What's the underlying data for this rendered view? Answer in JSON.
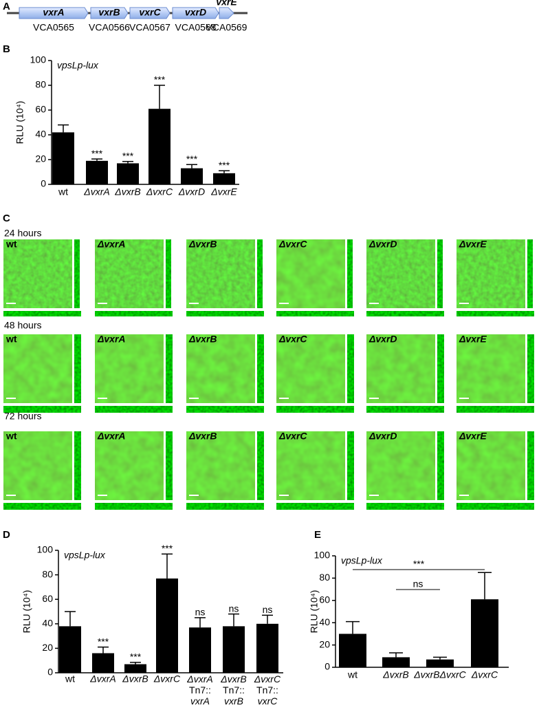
{
  "gene_map": {
    "panel": "A",
    "genes": [
      {
        "name": "vxrA",
        "locus": "VCA0565"
      },
      {
        "name": "vxrB",
        "locus": "VCA0566"
      },
      {
        "name": "vxrC",
        "locus": "VCA0567"
      },
      {
        "name": "vxrD",
        "locus": "VCA0568"
      },
      {
        "name": "vxrE",
        "locus": "VCA0569"
      }
    ]
  },
  "biofilm_images": {
    "panel": "C",
    "rows": [
      {
        "label": "24 hours",
        "strains": [
          "wt",
          "ΔvxrA",
          "ΔvxrB",
          "ΔvxrC",
          "ΔvxrD",
          "ΔvxrE"
        ]
      },
      {
        "label": "48 hours",
        "strains": [
          "wt",
          "ΔvxrA",
          "ΔvxrB",
          "ΔvxrC",
          "ΔvxrD",
          "ΔvxrE"
        ]
      },
      {
        "label": "72 hours",
        "strains": [
          "wt",
          "ΔvxrA",
          "ΔvxrB",
          "ΔvxrC",
          "ΔvxrD",
          "ΔvxrE"
        ]
      }
    ]
  },
  "chart_data": [
    {
      "type": "bar",
      "panel": "B",
      "annotation": "vpsLp-lux",
      "y_label": "RLU (10⁴)",
      "categories": [
        "wt",
        "ΔvxrA",
        "ΔvxrB",
        "ΔvxrC",
        "ΔvxrD",
        "ΔvxrE"
      ],
      "values": [
        42,
        19,
        17,
        61,
        13,
        9
      ],
      "errors": [
        6,
        1.5,
        1.5,
        19,
        3,
        2
      ],
      "significance": [
        null,
        "***",
        "***",
        "***",
        "***",
        "***"
      ],
      "color": "#000000",
      "ylim": [
        0,
        100
      ],
      "yticks": [
        0,
        20,
        40,
        60,
        80,
        100
      ]
    },
    {
      "type": "bar",
      "panel": "D",
      "annotation": "vpsLp-lux",
      "y_label": "RLU (10⁴)",
      "categories": [
        "wt",
        "ΔvxrA",
        "ΔvxrB",
        "ΔvxrC",
        "ΔvxrA\nTn7::\nvxrA",
        "ΔvxrB\nTn7::\nvxrB",
        "ΔvxrC\nTn7::\nvxrC"
      ],
      "values": [
        38,
        16,
        7,
        77,
        37,
        38,
        40
      ],
      "errors": [
        12,
        5,
        1.5,
        20,
        8,
        10,
        7
      ],
      "significance": [
        null,
        "***",
        "***",
        "***",
        "ns",
        "ns",
        "ns"
      ],
      "color": "#000000",
      "ylim": [
        0,
        100
      ],
      "yticks": [
        0,
        20,
        40,
        60,
        80,
        100
      ]
    },
    {
      "type": "bar",
      "panel": "E",
      "annotation": "vpsLp-lux",
      "y_label": "RLU (10⁴)",
      "categories": [
        "wt",
        "ΔvxrB",
        "ΔvxrBΔvxrC",
        "ΔvxrC"
      ],
      "values": [
        30,
        9,
        7,
        61
      ],
      "errors": [
        11,
        4,
        2,
        24
      ],
      "brackets": [
        {
          "label": "***",
          "from": "wt",
          "to": "ΔvxrC"
        },
        {
          "label": "ns",
          "from": "ΔvxrB",
          "to": "ΔvxrBΔvxrC"
        }
      ],
      "color": "#000000",
      "ylim": [
        0,
        100
      ],
      "yticks": [
        0,
        20,
        40,
        60,
        80,
        100
      ]
    }
  ]
}
